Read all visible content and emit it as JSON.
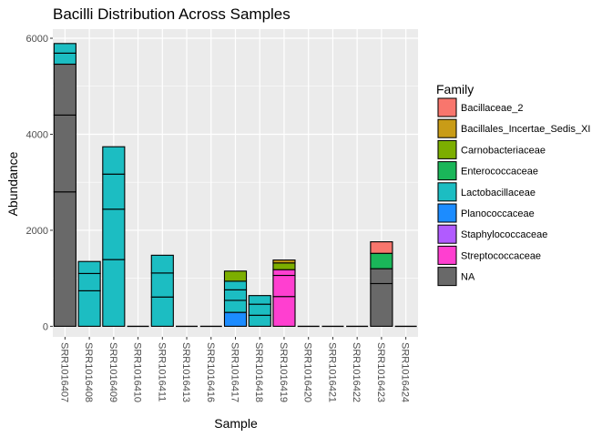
{
  "chart_data": {
    "type": "bar",
    "stacked": true,
    "title": "Bacilli Distribution Across Samples",
    "xlabel": "Sample",
    "ylabel": "Abundance",
    "ylim": [
      0,
      6000
    ],
    "yticks": [
      0,
      2000,
      4000,
      6000
    ],
    "grid": true,
    "legend": {
      "title": "Family",
      "position": "right"
    },
    "categories": [
      "SRR1016407",
      "SRR1016408",
      "SRR1016409",
      "SRR1016410",
      "SRR1016411",
      "SRR1016413",
      "SRR1016416",
      "SRR1016417",
      "SRR1016418",
      "SRR1016419",
      "SRR1016420",
      "SRR1016421",
      "SRR1016422",
      "SRR1016423",
      "SRR1016424"
    ],
    "series": [
      {
        "name": "NA",
        "color": "#696969",
        "values": [
          5460,
          0,
          0,
          0,
          0,
          0,
          0,
          0,
          0,
          0,
          0,
          0,
          0,
          1200,
          0
        ],
        "segments": [
          [
            2800,
            1600,
            1060
          ],
          [],
          [],
          [],
          [],
          [],
          [],
          [],
          [],
          [],
          [],
          [],
          [],
          [
            890,
            310
          ],
          []
        ]
      },
      {
        "name": "Streptococcaceae",
        "color": "#FF3FD0",
        "values": [
          0,
          0,
          0,
          0,
          0,
          0,
          0,
          0,
          0,
          1180,
          0,
          0,
          0,
          0,
          0
        ],
        "segments": [
          [],
          [],
          [],
          [],
          [],
          [],
          [],
          [],
          [],
          [
            620,
            440,
            120
          ],
          [],
          [],
          [],
          [],
          []
        ]
      },
      {
        "name": "Staphylococcaceae",
        "color": "#B15BFF",
        "values": [
          0,
          0,
          0,
          0,
          0,
          0,
          0,
          0,
          0,
          0,
          0,
          0,
          0,
          0,
          0
        ],
        "segments": [
          [],
          [],
          [],
          [],
          [],
          [],
          [],
          [],
          [],
          [],
          [],
          [],
          [],
          [],
          []
        ]
      },
      {
        "name": "Planococcaceae",
        "color": "#1C8CFF",
        "values": [
          0,
          0,
          0,
          0,
          0,
          0,
          0,
          290,
          0,
          0,
          0,
          0,
          0,
          0,
          0
        ],
        "segments": [
          [],
          [],
          [],
          [],
          [],
          [],
          [],
          [
            290
          ],
          [],
          [],
          [],
          [],
          [],
          [],
          []
        ]
      },
      {
        "name": "Lactobacillaceae",
        "color": "#1CBDC2",
        "values": [
          430,
          1350,
          3740,
          0,
          1480,
          0,
          0,
          650,
          640,
          0,
          0,
          0,
          0,
          0,
          0
        ],
        "segments": [
          [
            230,
            200
          ],
          [
            740,
            360,
            250
          ],
          [
            1390,
            1050,
            730,
            570
          ],
          [],
          [
            610,
            500,
            370
          ],
          [],
          [],
          [
            250,
            220,
            180
          ],
          [
            230,
            230,
            180
          ],
          [],
          [],
          [],
          [],
          [],
          []
        ]
      },
      {
        "name": "Enterococcaceae",
        "color": "#1AB659",
        "values": [
          0,
          0,
          0,
          0,
          0,
          0,
          0,
          0,
          0,
          0,
          0,
          0,
          0,
          320,
          0
        ],
        "segments": [
          [],
          [],
          [],
          [],
          [],
          [],
          [],
          [],
          [],
          [],
          [],
          [],
          [],
          [
            320
          ],
          []
        ]
      },
      {
        "name": "Carnobacteriaceae",
        "color": "#7CAE00",
        "values": [
          0,
          0,
          0,
          0,
          0,
          0,
          0,
          210,
          0,
          140,
          0,
          0,
          0,
          0,
          0
        ],
        "segments": [
          [],
          [],
          [],
          [],
          [],
          [],
          [],
          [
            210
          ],
          [],
          [
            140
          ],
          [],
          [],
          [],
          [],
          []
        ]
      },
      {
        "name": "Bacillales_Incertae_Sedis_XI",
        "color": "#C99C17",
        "values": [
          0,
          0,
          0,
          0,
          0,
          0,
          0,
          0,
          0,
          60,
          0,
          0,
          0,
          0,
          0
        ],
        "segments": [
          [],
          [],
          [],
          [],
          [],
          [],
          [],
          [],
          [],
          [
            60
          ],
          [],
          [],
          [],
          [],
          []
        ]
      },
      {
        "name": "Bacillaceae_2",
        "color": "#F8766D",
        "values": [
          0,
          0,
          0,
          0,
          0,
          0,
          0,
          0,
          0,
          0,
          0,
          0,
          0,
          240,
          0
        ],
        "segments": [
          [],
          [],
          [],
          [],
          [],
          [],
          [],
          [],
          [],
          [],
          [],
          [],
          [],
          [
            240
          ],
          []
        ]
      }
    ],
    "legend_order": [
      "Bacillaceae_2",
      "Bacillales_Incertae_Sedis_XI",
      "Carnobacteriaceae",
      "Enterococcaceae",
      "Lactobacillaceae",
      "Planococcaceae",
      "Staphylococcaceae",
      "Streptococcaceae",
      "NA"
    ]
  }
}
